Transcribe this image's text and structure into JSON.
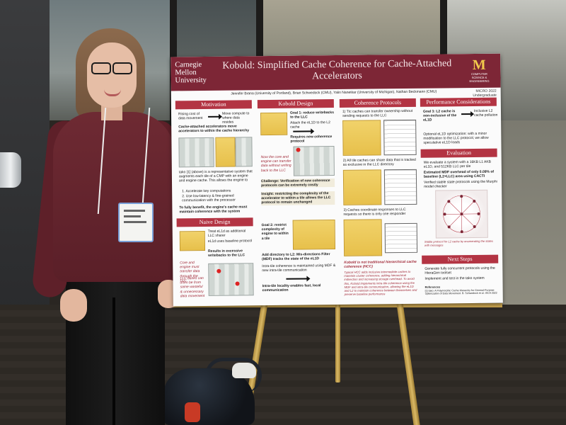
{
  "poster": {
    "institution": "Carnegie Mellon University",
    "title": "Kobold: Simplified Cache Coherence for Cache-Attached Accelerators",
    "logo_um_text": "COMPUTER SCIENCE & ENGINEERING",
    "authors": "Jennifer Brana (University of Portland), Brian Schwedock (CMU), Yalin Nanetkar (University of Michigan), Nathan Beckmann (CMU)",
    "venue": "MICRO 2022",
    "venue_sub": "Undergraduate SRC",
    "sections": {
      "motivation": {
        "heading": "Motivation",
        "flow_left": "Rising cost of data movement",
        "flow_right": "Move compute to where data resides",
        "lead": "Cache-attached accelerators move accelerators to within the cache hierarchy",
        "body": "tako [1] (above) is a representative system that augments each tile of a CMP with an engine and engine cache. This allows the engine to",
        "list": [
          "1. Accelerate key computations",
          "2. Use low-latency & fine-grained communication with the processor"
        ],
        "conclusion": "To fully benefit, the engine's cache must maintain coherence with the system"
      },
      "naive": {
        "heading": "Naive Design",
        "bullet1": "Treat eL1d as additional LLC sharer",
        "bullet2": "eL1d uses baseline protocol",
        "result": "Results in excessive writebacks to the LLC",
        "fig_note1": "Core and engine must transfer data through the LLC",
        "fig_note2": "LLC banks can often be from same wasteful & unnecessary data movement"
      },
      "kobold": {
        "heading": "Kobold Design",
        "goal1": "Goal 1: reduce writebacks to the LLC",
        "goal1_detail": "Attach the eL1D to the L2 cache",
        "requires": "Requires new coherence protocol",
        "fig_note": "Now the core and engine can transfer data without writing back to the LLC",
        "challenge": "Challenge: Verification of new coherence protocols can be extremely costly",
        "insight": "Insight: restricting the complexity of the accelerator to within a tile allows the LLC protocol to remain unchanged",
        "goal2": "Goal 2: restrict complexity of engine to within a tile",
        "add": "Add directory to L2: Mis-directions Filter (MDF) tracks the state of the eL1D",
        "intra": "Intra-tile coherence is maintained using MDF & new intra-tile communication",
        "locality": "Intra-tile locality enables fast, local communication"
      },
      "coherence": {
        "heading": "Coherence Protocols",
        "p1": "1) TIc caches can transfer ownership without sending requests to the LLC",
        "p2": "2) All tile caches can share data that is tracked as exclusive in the LLC directory",
        "p3": "3) Caches coordinate responses to LLC requests so there is only one responder",
        "footer_title": "Kobold is not traditional hierarchical cache coherence (HCC)",
        "footer_body": "Typical HCC adds inclusive intermediate caches to maintain cluster coherence, adding hierarchical indirection and increasing storage overhead. To avoid this, Kobold implements intra-tile coherence using the MDF and intra-tile communication, allowing the eL1D and L2 to maintain coherence between themselves and preserve baseline performance"
      },
      "performance": {
        "heading": "Performance Considerations",
        "goal": "Goal 3: L2 cache is non-inclusive of the eL1D",
        "goal_detail": "Inclusive L2 cache pollution",
        "optional": "Optional eL1D optimization: with a minor modification to the LLC protocol, we allow speculative eL1D loads"
      },
      "evaluation": {
        "heading": "Evaluation",
        "p1": "We evaluate a system with a 16KB L1 AKB eL1D, and 512KB LLC per tile",
        "p2": "Estimated MDF overhead of only 0.09% of baseline (L2+LLC) area using CACTI",
        "p3": "Verified stable state protocols using the Murphi model checker",
        "fig_note": "Stable protocol for L2 cache by enumerating the states with messages"
      },
      "next": {
        "heading": "Next Steps",
        "s1": "Generate fully concurrent protocols using the HieraGen toolset",
        "s2": "Implement and test in the tako system",
        "refs_label": "References",
        "refs": "[1] tako: A Polymorphic Cache Hierarchy for General-Purpose Optimization of Data Movement. B. Schwedock et al. ISCA 2022"
      }
    }
  },
  "colors": {
    "header": "#7d2636",
    "section": "#b33443",
    "um_maize": "#f2c94c"
  }
}
